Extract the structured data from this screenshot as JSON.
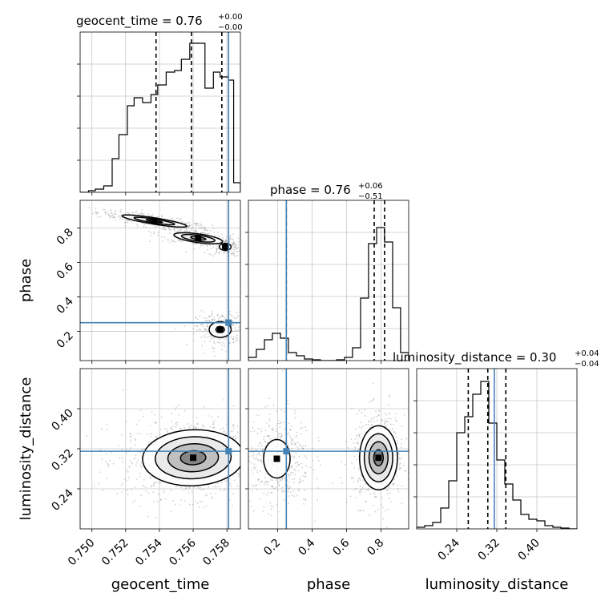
{
  "chart_data": {
    "type": "corner",
    "parameters": [
      "geocent_time",
      "phase",
      "luminosity_distance"
    ],
    "truth": {
      "geocent_time": 0.7581,
      "phase": 0.25,
      "luminosity_distance": 0.315
    },
    "colors": {
      "truth": "#4682b4",
      "hist": "#000000",
      "grid": "#c8c8c8",
      "samples": "#777777"
    },
    "grid": true,
    "panels": {
      "geocent_time": {
        "title_main": "geocent_time = 0.76",
        "title_plus": "+0.00",
        "title_minus": "−0.00",
        "xlim": [
          0.7493,
          0.7588
        ],
        "ticks": [
          0.75,
          0.752,
          0.754,
          0.756,
          0.758
        ],
        "tick_labels": [
          "0.750",
          "0.752",
          "0.754",
          "0.756",
          "0.758"
        ],
        "quantiles": [
          0.7538,
          0.7559,
          0.7577
        ],
        "hist_edges": [
          0.7493,
          0.7498,
          0.7502,
          0.7507,
          0.7512,
          0.7516,
          0.7521,
          0.7525,
          0.753,
          0.7535,
          0.7539,
          0.7544,
          0.7549,
          0.7553,
          0.7558,
          0.7563,
          0.7567,
          0.7572,
          0.7576,
          0.7581,
          0.7584,
          0.7588
        ],
        "hist_values": [
          0.0,
          0.01,
          0.02,
          0.04,
          0.21,
          0.36,
          0.54,
          0.59,
          0.56,
          0.61,
          0.67,
          0.75,
          0.76,
          0.83,
          0.93,
          0.93,
          0.65,
          0.75,
          0.72,
          0.7,
          0.06
        ]
      },
      "phase": {
        "title_main": "phase = 0.76",
        "title_plus": "+0.06",
        "title_minus": "−0.51",
        "xlim": [
          0.03,
          0.96
        ],
        "ticks": [
          0.2,
          0.4,
          0.6,
          0.8
        ],
        "tick_labels": [
          "0.2",
          "0.4",
          "0.6",
          "0.8"
        ],
        "quantiles": [
          0.25,
          0.76,
          0.82
        ],
        "hist_edges": [
          0.03,
          0.076,
          0.123,
          0.169,
          0.216,
          0.262,
          0.309,
          0.355,
          0.402,
          0.448,
          0.495,
          0.541,
          0.588,
          0.634,
          0.681,
          0.727,
          0.774,
          0.82,
          0.867,
          0.913,
          0.96
        ],
        "hist_values": [
          0.02,
          0.07,
          0.13,
          0.17,
          0.14,
          0.05,
          0.03,
          0.01,
          0.005,
          0.0,
          0.0,
          0.005,
          0.02,
          0.08,
          0.39,
          0.73,
          0.83,
          0.74,
          0.33,
          0.05
        ]
      },
      "luminosity_distance": {
        "title_main": "luminosity_distance = 0.30",
        "title_plus": "+0.04",
        "title_minus": "−0.04",
        "xlim": [
          0.16,
          0.48
        ],
        "ticks": [
          0.24,
          0.32,
          0.4
        ],
        "tick_labels": [
          "0.24",
          "0.32",
          "0.40"
        ],
        "quantiles": [
          0.263,
          0.302,
          0.338
        ],
        "hist_edges": [
          0.16,
          0.176,
          0.192,
          0.208,
          0.224,
          0.24,
          0.256,
          0.272,
          0.288,
          0.304,
          0.32,
          0.336,
          0.352,
          0.368,
          0.384,
          0.4,
          0.416,
          0.432,
          0.448,
          0.464,
          0.48
        ],
        "hist_values": [
          0.01,
          0.02,
          0.04,
          0.13,
          0.3,
          0.6,
          0.7,
          0.84,
          0.92,
          0.66,
          0.43,
          0.28,
          0.18,
          0.09,
          0.06,
          0.05,
          0.02,
          0.01,
          0.005,
          0.0
        ]
      }
    },
    "pair_axes": {
      "phase_ylim": [
        0.03,
        0.96
      ],
      "phase_yticks": [
        0.2,
        0.4,
        0.6,
        0.8
      ],
      "phase_ytick_labels": [
        "0.2",
        "0.4",
        "0.6",
        "0.8"
      ],
      "dist_ylim": [
        0.16,
        0.48
      ],
      "dist_yticks": [
        0.24,
        0.32,
        0.4
      ],
      "dist_ytick_labels": [
        "0.24",
        "0.32",
        "0.40"
      ]
    },
    "clusters": {
      "geocent_vs_phase": [
        {
          "x": 0.7537,
          "y": 0.84,
          "sx": 0.0012,
          "sy": 0.022,
          "rho": -0.85,
          "levels": [
            0.4,
            1.0,
            1.6
          ]
        },
        {
          "x": 0.7563,
          "y": 0.74,
          "sx": 0.0009,
          "sy": 0.02,
          "rho": -0.6,
          "levels": [
            0.5,
            1.1,
            1.6
          ]
        },
        {
          "x": 0.7579,
          "y": 0.69,
          "sx": 0.00035,
          "sy": 0.02,
          "rho": 0.0,
          "levels": [
            1.0
          ]
        },
        {
          "x": 0.7576,
          "y": 0.21,
          "sx": 0.0005,
          "sy": 0.035,
          "rho": 0.0,
          "levels": [
            0.5,
            1.3
          ]
        }
      ],
      "geocent_vs_distance": [
        {
          "x": 0.756,
          "y": 0.302,
          "sx": 0.0015,
          "sy": 0.028,
          "rho": 0.05,
          "levels": [
            0.5,
            1.0,
            1.5,
            2.0
          ]
        }
      ],
      "phase_vs_distance": [
        {
          "x": 0.195,
          "y": 0.3,
          "sx": 0.07,
          "sy": 0.035,
          "rho": 0.0,
          "levels": [
            1.1
          ]
        },
        {
          "x": 0.785,
          "y": 0.302,
          "sx": 0.055,
          "sy": 0.032,
          "rho": 0.0,
          "levels": [
            0.5,
            1.0,
            1.5,
            2.0
          ]
        }
      ]
    },
    "xlabels": {
      "geocent_time": "geocent_time",
      "phase": "phase",
      "luminosity_distance": "luminosity_distance"
    },
    "ylabels": {
      "phase": "phase",
      "luminosity_distance": "luminosity_distance"
    }
  }
}
